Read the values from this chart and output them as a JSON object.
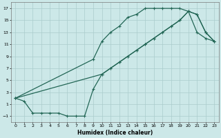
{
  "xlabel": "Humidex (Indice chaleur)",
  "bg_color": "#cce8e8",
  "grid_major_color": "#aacccc",
  "grid_minor_color": "#bbdddd",
  "line_color": "#226655",
  "xlim": [
    -0.5,
    23.5
  ],
  "ylim": [
    -2.0,
    18.0
  ],
  "xticks": [
    0,
    1,
    2,
    3,
    4,
    5,
    6,
    7,
    8,
    9,
    10,
    11,
    12,
    13,
    14,
    15,
    16,
    17,
    18,
    19,
    20,
    21,
    22,
    23
  ],
  "yticks": [
    -1,
    1,
    3,
    5,
    7,
    9,
    11,
    13,
    15,
    17
  ],
  "curve_upper_x": [
    0,
    9,
    10,
    11,
    12,
    13,
    14,
    15,
    16,
    17,
    18,
    19,
    20,
    21,
    22,
    23
  ],
  "curve_upper_y": [
    2,
    8.5,
    11.5,
    13,
    14,
    15.5,
    16,
    17,
    17,
    17,
    17,
    17,
    16.5,
    13,
    12,
    11.5
  ],
  "curve_bottom_x": [
    0,
    1,
    2,
    3,
    4,
    5,
    6,
    7,
    8,
    9,
    10,
    11,
    12,
    13,
    14,
    15,
    16,
    17,
    18,
    19,
    20,
    21,
    22,
    23
  ],
  "curve_bottom_y": [
    2,
    1.5,
    -0.5,
    -0.5,
    -0.5,
    -0.5,
    -1,
    -1,
    -1,
    3.5,
    6,
    7,
    8,
    9,
    10,
    11,
    12,
    13,
    14,
    15,
    16.5,
    16,
    13,
    11.5
  ],
  "curve_diag_x": [
    0,
    10,
    11,
    12,
    13,
    14,
    15,
    16,
    17,
    18,
    19,
    20,
    21,
    22,
    23
  ],
  "curve_diag_y": [
    2,
    6,
    7,
    8,
    9,
    10,
    11,
    12,
    13,
    14,
    15,
    16.5,
    16,
    13,
    11.5
  ]
}
